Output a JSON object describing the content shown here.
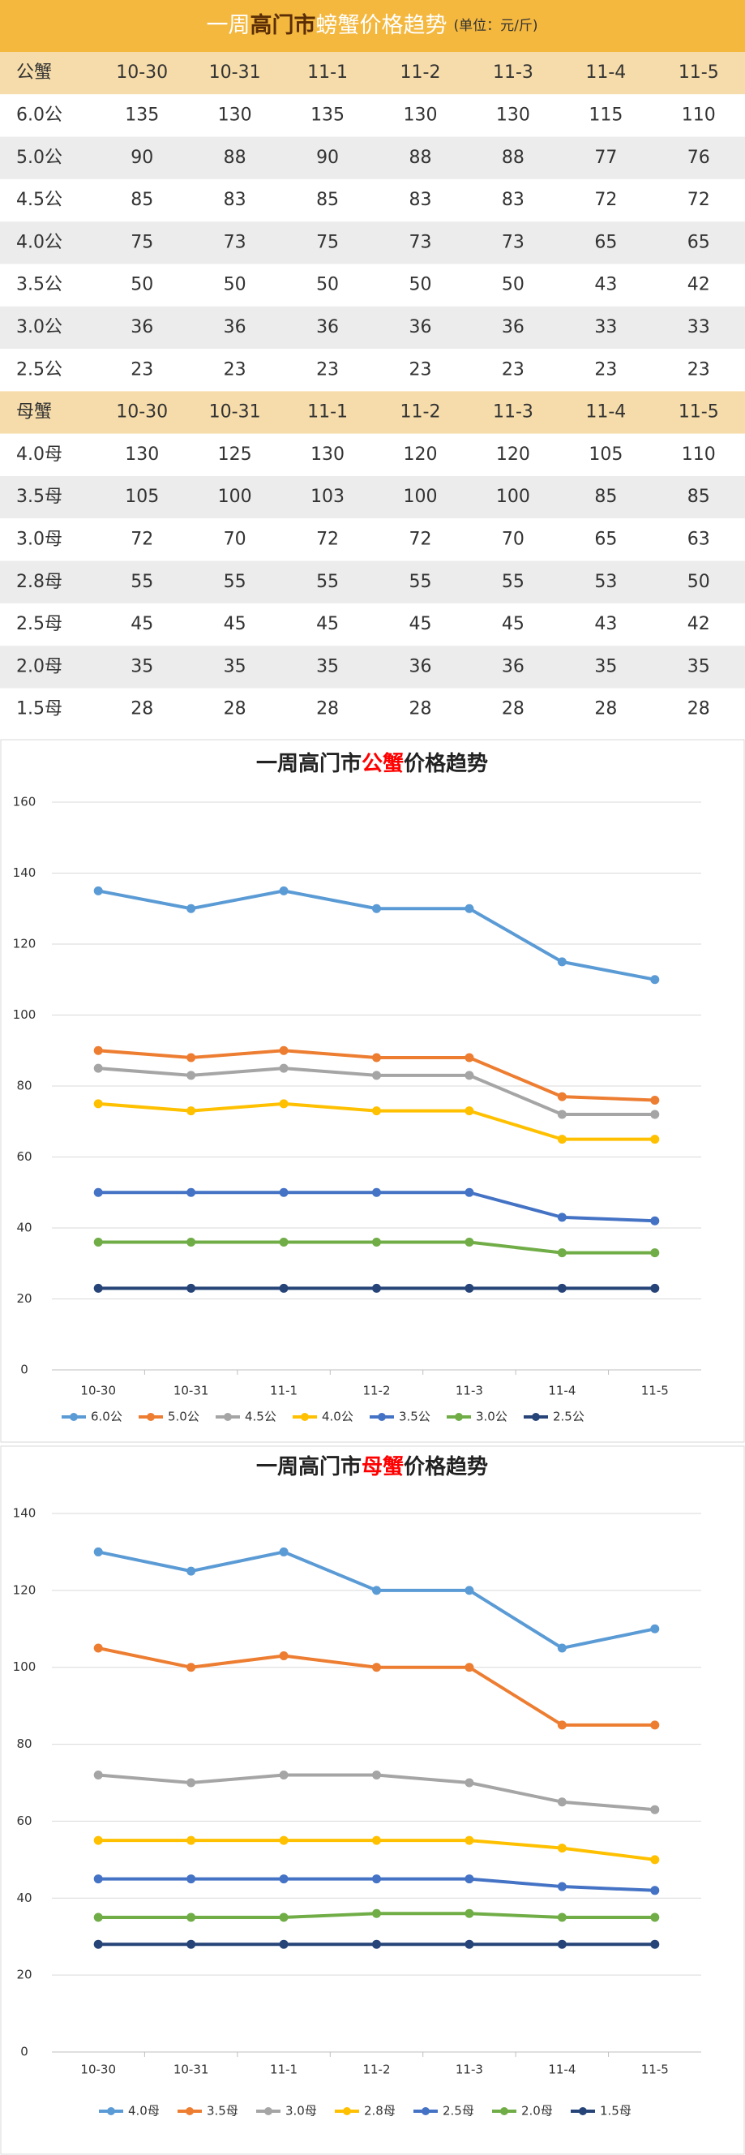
{
  "table": {
    "title": [
      "一周",
      "高门市",
      "螃蟹价格趋势"
    ],
    "unit": "(单位：元/斤)",
    "sections": [
      {
        "header": [
          "公蟹",
          "10-30",
          "10-31",
          "11-1",
          "11-2",
          "11-3",
          "11-4",
          "11-5"
        ],
        "rows": [
          [
            "6.0公",
            135,
            130,
            135,
            130,
            130,
            115,
            110
          ],
          [
            "5.0公",
            90,
            88,
            90,
            88,
            88,
            77,
            76
          ],
          [
            "4.5公",
            85,
            83,
            85,
            83,
            83,
            72,
            72
          ],
          [
            "4.0公",
            75,
            73,
            75,
            73,
            73,
            65,
            65
          ],
          [
            "3.5公",
            50,
            50,
            50,
            50,
            50,
            43,
            42
          ],
          [
            "3.0公",
            36,
            36,
            36,
            36,
            36,
            33,
            33
          ],
          [
            "2.5公",
            23,
            23,
            23,
            23,
            23,
            23,
            23
          ]
        ]
      },
      {
        "header": [
          "母蟹",
          "10-30",
          "10-31",
          "11-1",
          "11-2",
          "11-3",
          "11-4",
          "11-5"
        ],
        "rows": [
          [
            "4.0母",
            130,
            125,
            130,
            120,
            120,
            105,
            110
          ],
          [
            "3.5母",
            105,
            100,
            103,
            100,
            100,
            85,
            85
          ],
          [
            "3.0母",
            72,
            70,
            72,
            72,
            70,
            65,
            63
          ],
          [
            "2.8母",
            55,
            55,
            55,
            55,
            55,
            53,
            50
          ],
          [
            "2.5母",
            45,
            45,
            45,
            45,
            45,
            43,
            42
          ],
          [
            "2.0母",
            35,
            35,
            35,
            36,
            36,
            35,
            35
          ],
          [
            "1.5母",
            28,
            28,
            28,
            28,
            28,
            28,
            28
          ]
        ]
      }
    ]
  },
  "chart_data": [
    {
      "type": "line",
      "title": [
        "一周高门市",
        "公蟹",
        "价格趋势"
      ],
      "categories": [
        "10-30",
        "10-31",
        "11-1",
        "11-2",
        "11-3",
        "11-4",
        "11-5"
      ],
      "ylim": [
        0,
        160
      ],
      "yticks": [
        0,
        20,
        40,
        60,
        80,
        100,
        120,
        140,
        160
      ],
      "grid": true,
      "series": [
        {
          "name": "6.0公",
          "color": "#5b9bd5",
          "values": [
            135,
            130,
            135,
            130,
            130,
            115,
            110
          ]
        },
        {
          "name": "5.0公",
          "color": "#ed7d31",
          "values": [
            90,
            88,
            90,
            88,
            88,
            77,
            76
          ]
        },
        {
          "name": "4.5公",
          "color": "#a5a5a5",
          "values": [
            85,
            83,
            85,
            83,
            83,
            72,
            72
          ]
        },
        {
          "name": "4.0公",
          "color": "#ffc000",
          "values": [
            75,
            73,
            75,
            73,
            73,
            65,
            65
          ]
        },
        {
          "name": "3.5公",
          "color": "#4472c4",
          "values": [
            50,
            50,
            50,
            50,
            50,
            43,
            42
          ]
        },
        {
          "name": "3.0公",
          "color": "#70ad47",
          "values": [
            36,
            36,
            36,
            36,
            36,
            33,
            33
          ]
        },
        {
          "name": "2.5公",
          "color": "#264478",
          "values": [
            23,
            23,
            23,
            23,
            23,
            23,
            23
          ]
        }
      ]
    },
    {
      "type": "line",
      "title": [
        "一周高门市",
        "母蟹",
        "价格趋势"
      ],
      "categories": [
        "10-30",
        "10-31",
        "11-1",
        "11-2",
        "11-3",
        "11-4",
        "11-5"
      ],
      "ylim": [
        0,
        140
      ],
      "yticks": [
        0,
        20,
        40,
        60,
        80,
        100,
        120,
        140
      ],
      "grid": true,
      "series": [
        {
          "name": "4.0母",
          "color": "#5b9bd5",
          "values": [
            130,
            125,
            130,
            120,
            120,
            105,
            110
          ]
        },
        {
          "name": "3.5母",
          "color": "#ed7d31",
          "values": [
            105,
            100,
            103,
            100,
            100,
            85,
            85
          ]
        },
        {
          "name": "3.0母",
          "color": "#a5a5a5",
          "values": [
            72,
            70,
            72,
            72,
            70,
            65,
            63
          ]
        },
        {
          "name": "2.8母",
          "color": "#ffc000",
          "values": [
            55,
            55,
            55,
            55,
            55,
            53,
            50
          ]
        },
        {
          "name": "2.5母",
          "color": "#4472c4",
          "values": [
            45,
            45,
            45,
            45,
            45,
            43,
            42
          ]
        },
        {
          "name": "2.0母",
          "color": "#70ad47",
          "values": [
            35,
            35,
            35,
            36,
            36,
            35,
            35
          ]
        },
        {
          "name": "1.5母",
          "color": "#264478",
          "values": [
            28,
            28,
            28,
            28,
            28,
            28,
            28
          ]
        }
      ]
    }
  ]
}
